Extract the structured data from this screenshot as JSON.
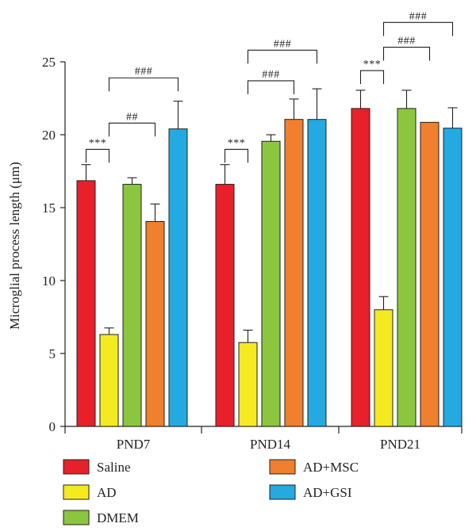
{
  "chart_data": {
    "type": "bar",
    "title": "",
    "xlabel": "",
    "ylabel": "Microglial process length (μm)",
    "ylim": [
      0,
      25
    ],
    "yticks": [
      0,
      5,
      10,
      15,
      20,
      25
    ],
    "grid": false,
    "legend_position": "bottom",
    "categories": [
      "PND7",
      "PND14",
      "PND21"
    ],
    "series": [
      {
        "name": "Saline",
        "color": "#e8202a",
        "values": [
          16.85,
          16.6,
          21.8
        ],
        "errors": [
          1.1,
          1.35,
          1.25
        ]
      },
      {
        "name": "AD",
        "color": "#f5ea1f",
        "values": [
          6.3,
          5.75,
          8.0
        ],
        "errors": [
          0.45,
          0.85,
          0.9
        ]
      },
      {
        "name": "DMEM",
        "color": "#8cc63f",
        "values": [
          16.6,
          19.55,
          21.8
        ],
        "errors": [
          0.45,
          0.45,
          1.25
        ]
      },
      {
        "name": "AD+MSC",
        "color": "#f07f2e",
        "values": [
          14.05,
          21.05,
          20.85
        ],
        "errors": [
          1.2,
          1.4,
          0.0
        ]
      },
      {
        "name": "AD+GSI",
        "color": "#24a9e1",
        "values": [
          20.4,
          21.05,
          20.45
        ],
        "errors": [
          1.9,
          2.1,
          1.4
        ]
      }
    ],
    "annotations": [
      {
        "category": 0,
        "from": 0,
        "to": 1,
        "label": "***",
        "y": 19.0
      },
      {
        "category": 0,
        "from": 1,
        "to": 3,
        "label": "##",
        "y": 20.8
      },
      {
        "category": 0,
        "from": 1,
        "to": 4,
        "label": "###",
        "y": 23.9
      },
      {
        "category": 1,
        "from": 0,
        "to": 1,
        "label": "***",
        "y": 19.0
      },
      {
        "category": 1,
        "from": 1,
        "to": 3,
        "label": "###",
        "y": 23.7
      },
      {
        "category": 1,
        "from": 1,
        "to": 4,
        "label": "###",
        "y": 25.8
      },
      {
        "category": 2,
        "from": 0,
        "to": 1,
        "label": "***",
        "y": 24.4
      },
      {
        "category": 2,
        "from": 1,
        "to": 3,
        "label": "###",
        "y": 26.0
      },
      {
        "category": 2,
        "from": 1,
        "to": 4,
        "label": "###",
        "y": 27.7
      }
    ]
  }
}
